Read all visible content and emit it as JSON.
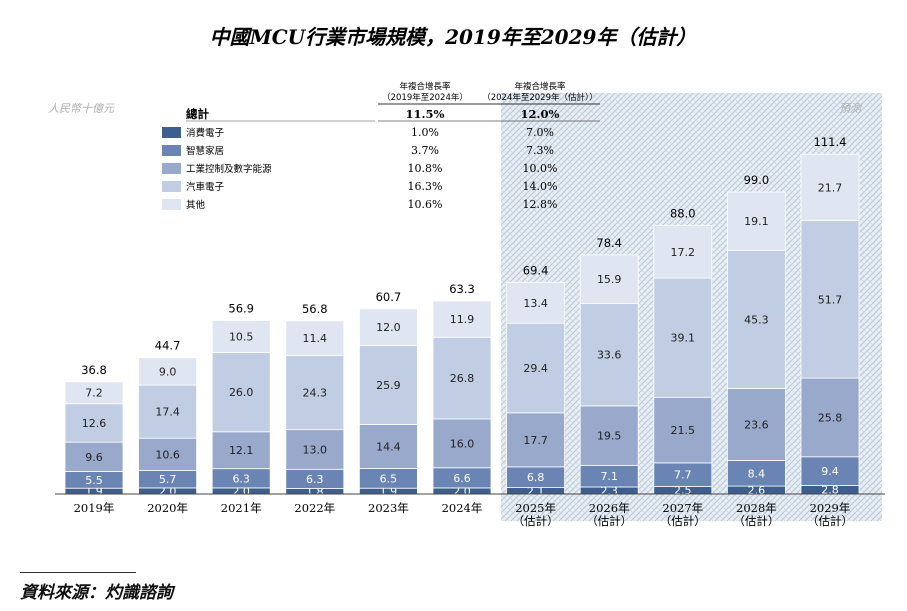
{
  "chart_data": {
    "type": "bar",
    "stacked": true,
    "title": "中國MCU行業市場規模，2019年至2029年（估計）",
    "unit_label": "人民幣十億元",
    "forecast_label": "預測",
    "categories": [
      "2019年",
      "2020年",
      "2021年",
      "2022年",
      "2023年",
      "2024年",
      "2025年\n（估計）",
      "2026年\n（估計）",
      "2027年\n（估計）",
      "2028年\n（估計）",
      "2029年\n（估計）"
    ],
    "forecast_from_index": 6,
    "ylim": [
      0,
      120
    ],
    "series": [
      {
        "name": "消費電子",
        "color": "#3e5f8e",
        "values": [
          1.9,
          2.0,
          2.0,
          1.8,
          1.9,
          2.0,
          2.1,
          2.3,
          2.5,
          2.6,
          2.8
        ]
      },
      {
        "name": "智慧家居",
        "color": "#6a85b4",
        "values": [
          5.5,
          5.7,
          6.3,
          6.3,
          6.5,
          6.6,
          6.8,
          7.1,
          7.7,
          8.4,
          9.4
        ]
      },
      {
        "name": "工業控制及數字能源",
        "color": "#99a9cb",
        "values": [
          9.6,
          10.6,
          12.1,
          13.0,
          14.4,
          16.0,
          17.7,
          19.5,
          21.5,
          23.6,
          25.8
        ]
      },
      {
        "name": "汽車電子",
        "color": "#c1cde3",
        "values": [
          12.6,
          17.4,
          26.0,
          24.3,
          25.9,
          26.8,
          29.4,
          33.6,
          39.1,
          45.3,
          51.7
        ]
      },
      {
        "name": "其他",
        "color": "#e0e6f1",
        "values": [
          7.2,
          9.0,
          10.5,
          11.4,
          12.0,
          11.9,
          13.4,
          15.9,
          17.2,
          19.1,
          21.7
        ]
      }
    ],
    "totals": [
      36.8,
      44.7,
      56.9,
      56.8,
      60.7,
      63.3,
      69.4,
      78.4,
      88.0,
      99.0,
      111.4
    ],
    "legend_title": "總計",
    "cagr_headers": [
      [
        "年複合增長率",
        "（2019年至2024年）"
      ],
      [
        "年複合增長率",
        "（2024年至2029年（估計））"
      ]
    ],
    "cagr_total": [
      "11.5%",
      "12.0%"
    ],
    "cagr_rows": [
      [
        "1.0%",
        "7.0%"
      ],
      [
        "3.7%",
        "7.3%"
      ],
      [
        "10.8%",
        "10.0%"
      ],
      [
        "16.3%",
        "14.0%"
      ],
      [
        "10.6%",
        "12.8%"
      ]
    ]
  },
  "source_text": "資料來源：灼識諮詢"
}
